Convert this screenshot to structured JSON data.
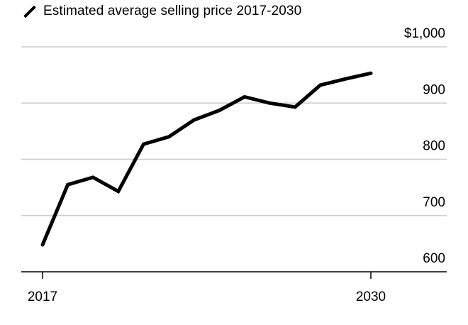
{
  "chart_data": {
    "type": "line",
    "legend": "Estimated average selling price 2017-2030",
    "series": [
      {
        "name": "Estimated average selling price 2017-2030",
        "color": "#000000",
        "x": [
          2017,
          2018,
          2019,
          2020,
          2021,
          2022,
          2023,
          2024,
          2025,
          2026,
          2027,
          2028,
          2029,
          2030
        ],
        "values": [
          648,
          755,
          768,
          743,
          827,
          840,
          870,
          887,
          911,
          900,
          893,
          932,
          943,
          953
        ]
      }
    ],
    "ylim": [
      600,
      1000
    ],
    "yticks": [
      {
        "value": 1000,
        "label": "$1,000"
      },
      {
        "value": 900,
        "label": "900"
      },
      {
        "value": 800,
        "label": "800"
      },
      {
        "value": 700,
        "label": "700"
      },
      {
        "value": 600,
        "label": "600"
      }
    ],
    "xticks": [
      {
        "value": 2017,
        "label": "2017"
      },
      {
        "value": 2030,
        "label": "2030"
      }
    ],
    "grid": true,
    "legend_position": "top-left"
  }
}
